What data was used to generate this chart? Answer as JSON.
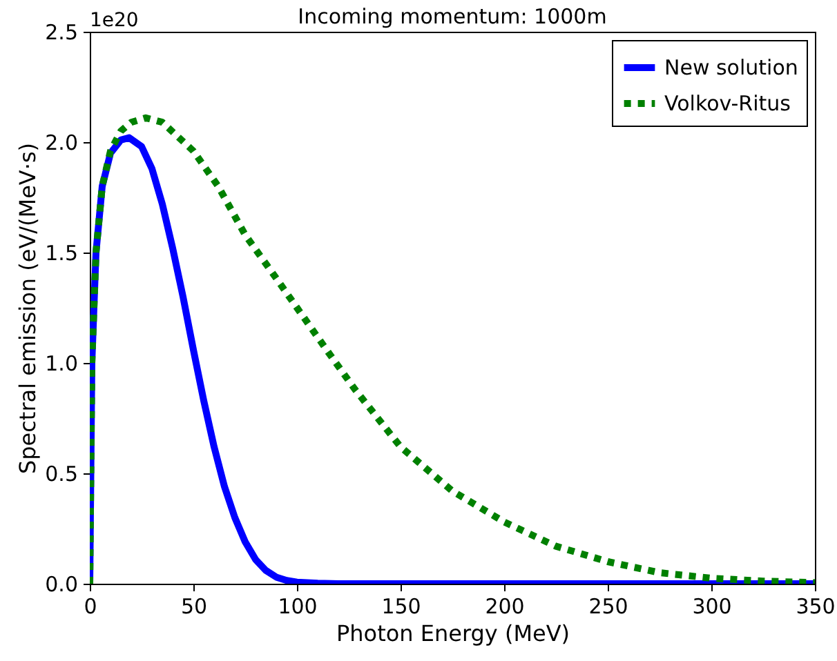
{
  "chart_data": {
    "type": "line",
    "title": "Incoming momentum: 1000m",
    "xlabel": "Photon Energy (MeV)",
    "ylabel": "Spectral emission (eV/(MeV·s)",
    "annotations": [
      "1e20"
    ],
    "xlim": [
      0,
      350
    ],
    "xticks": [
      0,
      50,
      100,
      150,
      200,
      250,
      300,
      350
    ],
    "ylim": [
      0,
      2.5
    ],
    "yticks": [
      {
        "value": 0,
        "label": "0.0"
      },
      {
        "value": 0.5,
        "label": "0.5"
      },
      {
        "value": 1,
        "label": "1.0"
      },
      {
        "value": 1.5,
        "label": "1.5"
      },
      {
        "value": 2,
        "label": "2.0"
      },
      {
        "value": 2.5,
        "label": "2.5"
      }
    ],
    "legend": "top right",
    "grid": false,
    "series": [
      {
        "name": "New solution",
        "color": "#0000ff",
        "line_style": "solid",
        "x": [
          0,
          1,
          3,
          6,
          10,
          15,
          19,
          25,
          30,
          35,
          40,
          45,
          50,
          55,
          60,
          65,
          70,
          75,
          80,
          85,
          90,
          95,
          100,
          110,
          120,
          200,
          350
        ],
        "values": [
          0,
          1.0,
          1.5,
          1.8,
          1.95,
          2.01,
          2.02,
          1.98,
          1.88,
          1.72,
          1.52,
          1.3,
          1.06,
          0.83,
          0.62,
          0.44,
          0.3,
          0.19,
          0.11,
          0.06,
          0.03,
          0.015,
          0.007,
          0.002,
          0,
          0,
          0
        ]
      },
      {
        "name": "Volkov-Ritus",
        "color": "#008000",
        "line_style": "dotted",
        "x": [
          0,
          1,
          3,
          6,
          10,
          15,
          20,
          27,
          35,
          50,
          62,
          75,
          88,
          100,
          115,
          128,
          150,
          175,
          200,
          225,
          250,
          275,
          300,
          325,
          350
        ],
        "values": [
          0,
          1.0,
          1.5,
          1.8,
          1.96,
          2.05,
          2.09,
          2.11,
          2.09,
          1.96,
          1.8,
          1.58,
          1.41,
          1.25,
          1.05,
          0.88,
          0.62,
          0.42,
          0.28,
          0.17,
          0.1,
          0.05,
          0.025,
          0.012,
          0.005
        ]
      }
    ]
  }
}
